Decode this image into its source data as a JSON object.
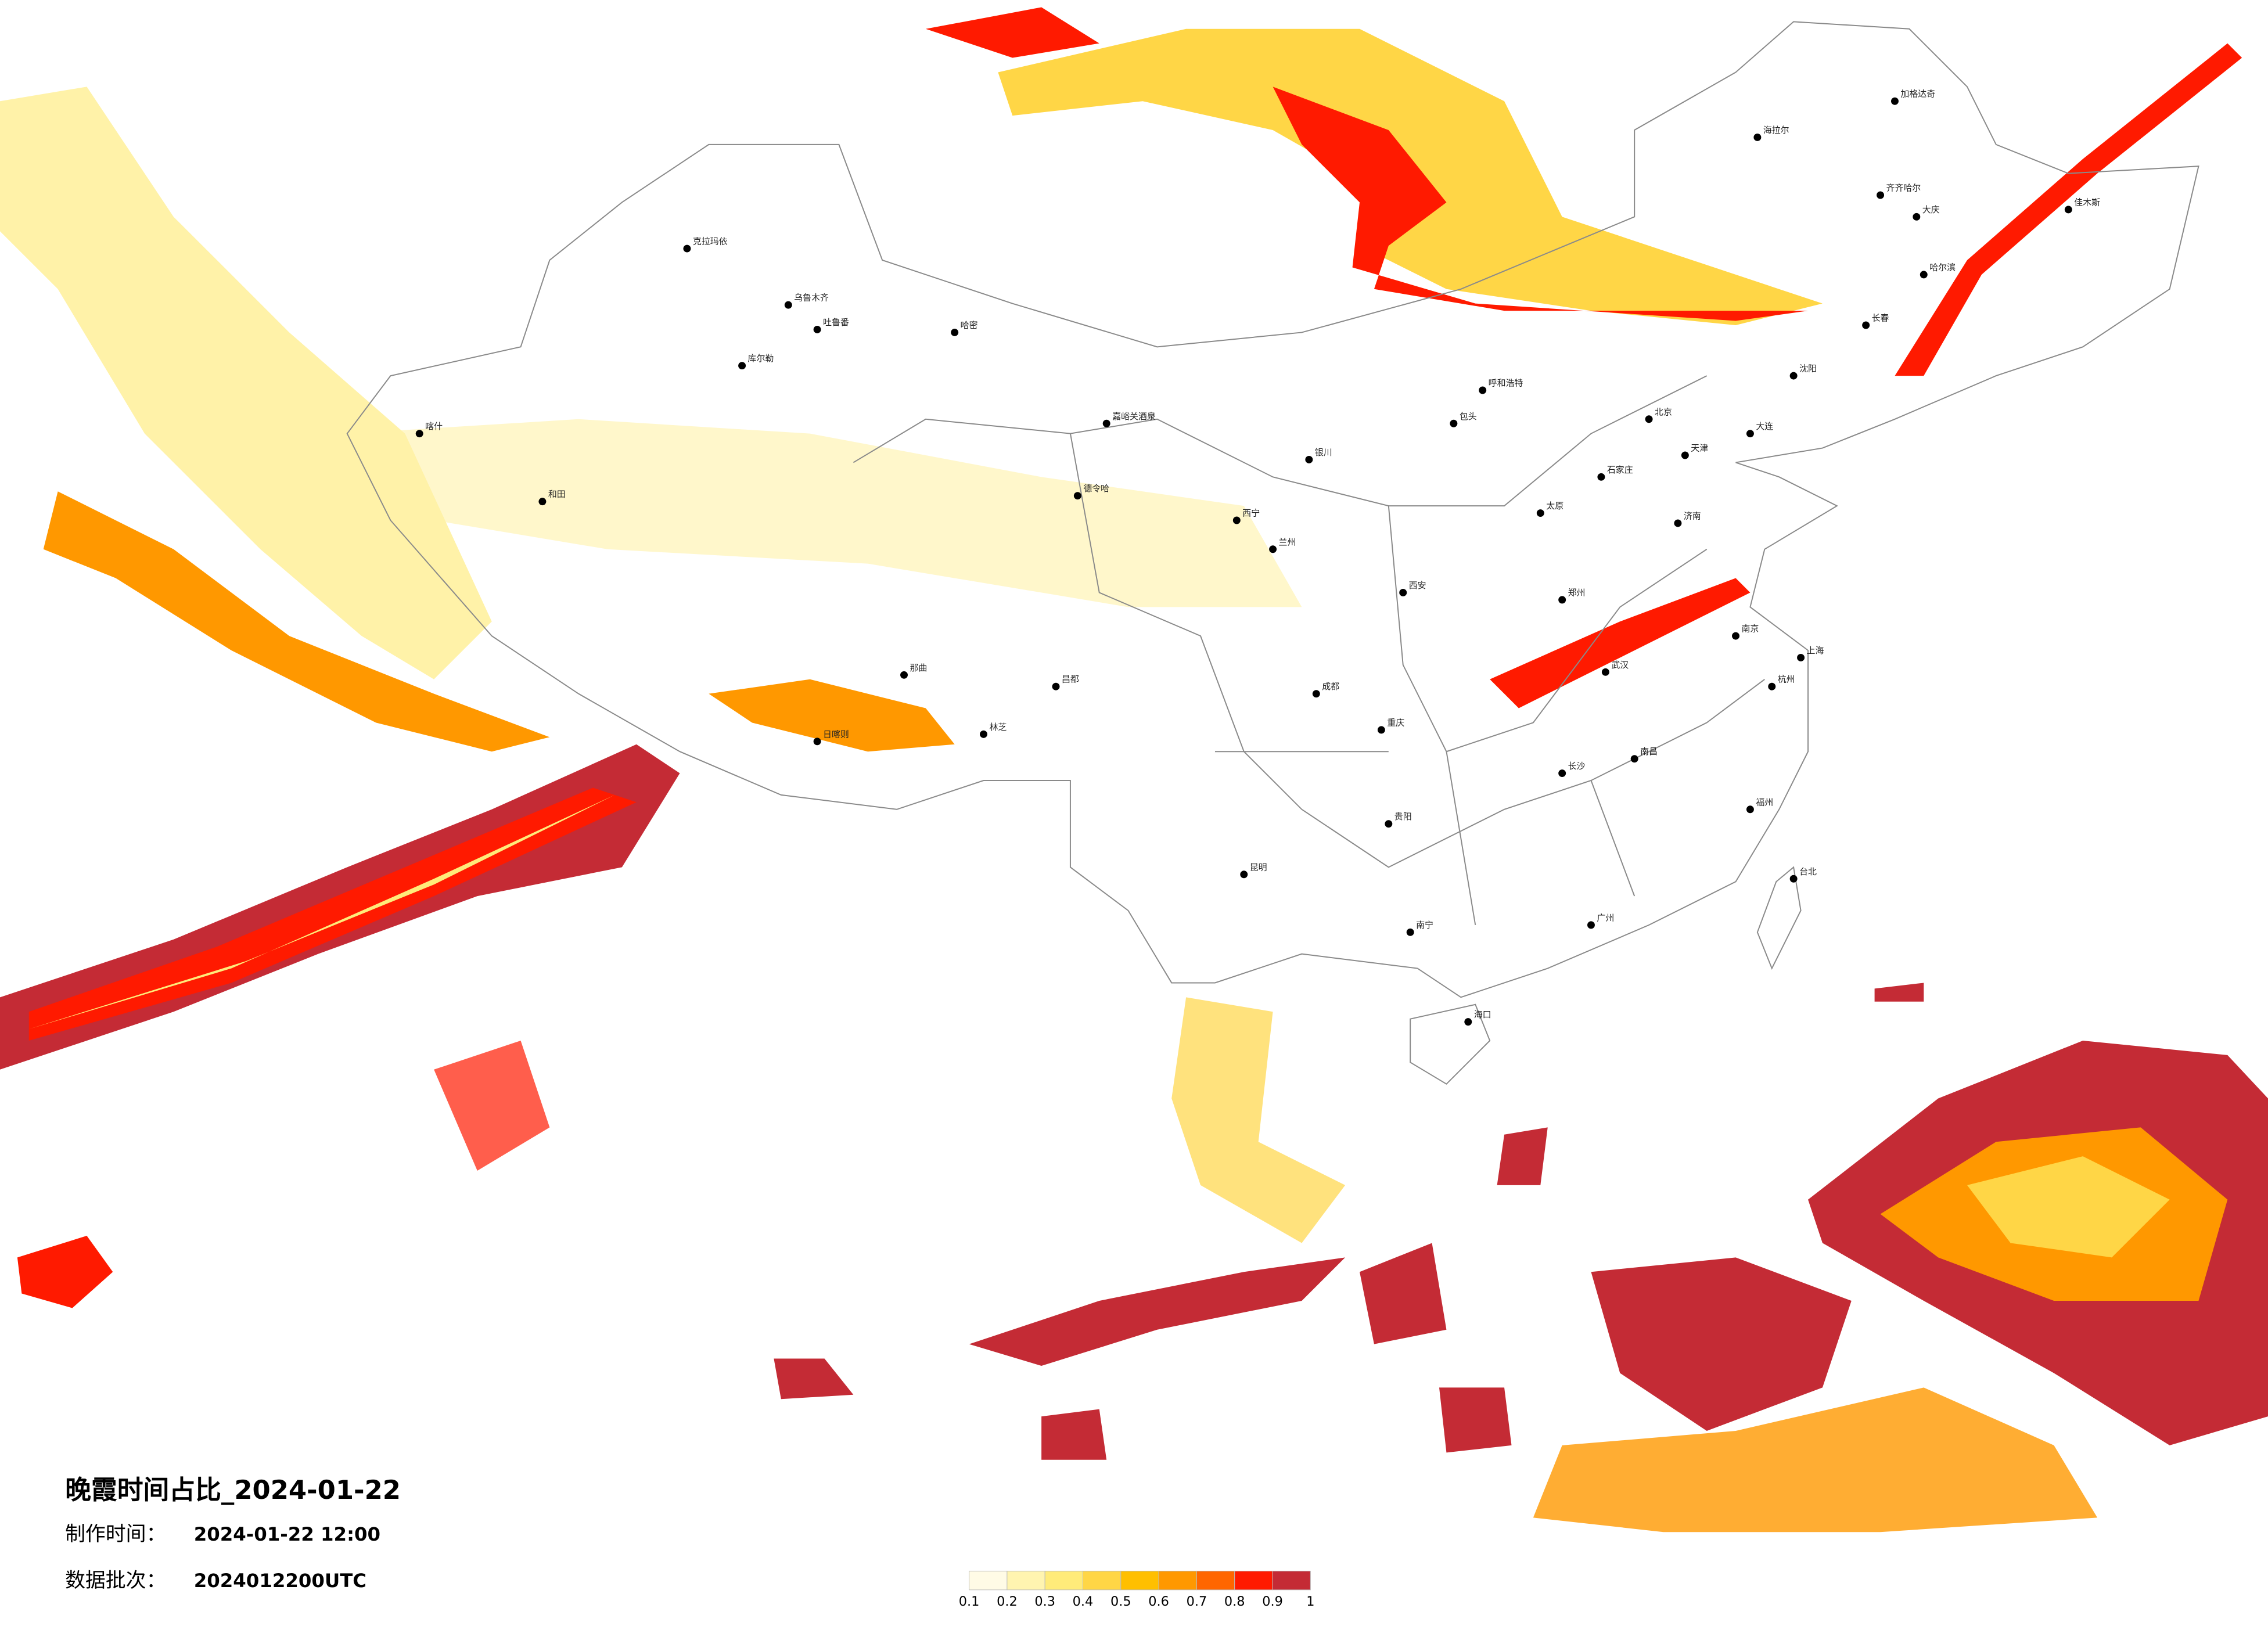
{
  "title": "晚霞时间占比_2024-01-22",
  "production": {
    "label": "制作时间：",
    "value": "2024-01-22 12:00"
  },
  "batch": {
    "label": "数据批次：",
    "value": "2024012200UTC"
  },
  "legend": {
    "ticks": [
      0.1,
      0.2,
      0.3,
      0.4,
      0.5,
      0.6,
      0.7,
      0.8,
      0.9,
      1
    ],
    "colors": [
      "#fffbe6",
      "#fff4b0",
      "#ffeb7a",
      "#ffd646",
      "#ffbf00",
      "#ff9800",
      "#ff6600",
      "#ff1a00",
      "#c42b35"
    ]
  },
  "cities": [
    "克拉玛依",
    "乌鲁木齐",
    "吐鲁番",
    "哈密",
    "库尔勒",
    "喀什",
    "和田",
    "嘉峪关酒泉",
    "德令哈",
    "那曲",
    "日喀则",
    "林芝",
    "昌都",
    "呼和浩特",
    "包头",
    "银川",
    "西宁",
    "兰州",
    "北京",
    "天津",
    "石家庄",
    "太原",
    "济南",
    "郑州",
    "西安",
    "成都",
    "重庆",
    "武汉",
    "南京",
    "上海",
    "杭州",
    "长沙",
    "南昌",
    "福州",
    "贵阳",
    "昆明",
    "南宁",
    "广州",
    "海口",
    "台北",
    "沈阳",
    "大连",
    "长春",
    "哈尔滨",
    "齐齐哈尔",
    "海拉尔",
    "加格达奇",
    "大庆",
    "佳木斯"
  ]
}
